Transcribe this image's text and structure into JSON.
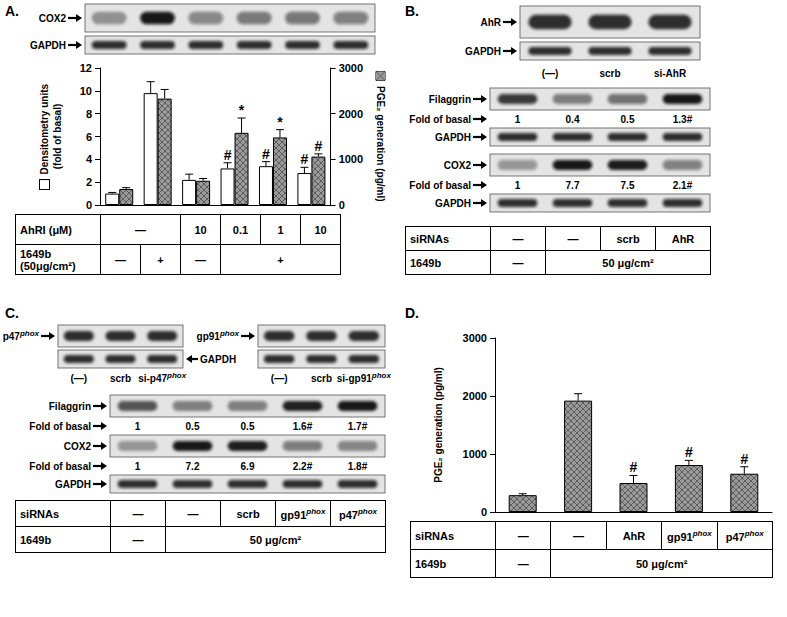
{
  "chart_data": [
    {
      "type": "bar",
      "categories": [
        null,
        null,
        null,
        null,
        null,
        null
      ],
      "y_label": "Densitometry units\n(fold of basal)",
      "ylim": [
        0,
        12
      ],
      "yticks": [
        0,
        2,
        4,
        6,
        8,
        10,
        12
      ],
      "y2_label": "PGE₂ generation (pg/ml)",
      "y2lim": [
        0,
        3000
      ],
      "y2ticks": [
        0,
        1000,
        2000,
        3000
      ],
      "grid": false,
      "series": [
        {
          "type": "bar",
          "color": "#ffffff",
          "values": [
            1.0,
            9.8,
            2.2,
            3.2,
            3.4,
            2.8
          ],
          "errors": [
            0.1,
            1.0,
            0.5,
            0.5,
            0.4,
            0.5
          ],
          "annotations": [
            null,
            null,
            null,
            "#",
            "#",
            "#"
          ]
        },
        {
          "type": "bar",
          "axis": "y2",
          "color": "#9a9a9a",
          "values": [
            350,
            2330,
            530,
            1580,
            1480,
            1060
          ],
          "errors": [
            30,
            200,
            50,
            325,
            170,
            60
          ],
          "annotations": [
            null,
            null,
            null,
            "*",
            "*",
            "#"
          ]
        }
      ]
    },
    {
      "type": "bar",
      "categories": [
        null,
        null,
        null,
        null,
        null
      ],
      "y_label": "PGE₂ generation (pg/ml)",
      "ylim": [
        0,
        3000
      ],
      "yticks": [
        0,
        1000,
        2000,
        3000
      ],
      "grid": false,
      "color": "#9a9a9a",
      "values": [
        290,
        1920,
        500,
        810,
        660
      ],
      "errors": [
        25,
        120,
        130,
        80,
        120
      ],
      "annotations": [
        null,
        null,
        "#",
        "#",
        "#"
      ]
    }
  ],
  "figure": {
    "A": {
      "letter": "A.",
      "blots": [
        {
          "label": "COX2"
        },
        {
          "label": "GAPDH"
        }
      ],
      "table": {
        "rows": [
          {
            "label": "AhRI (μM)",
            "cells": [
              {
                "text": "—",
                "span": 2
              },
              {
                "text": "10"
              },
              {
                "text": "0.1"
              },
              {
                "text": "1"
              },
              {
                "text": "10"
              }
            ]
          },
          {
            "label": "1649b (50μg/cm²)",
            "cells": [
              {
                "text": "—"
              },
              {
                "text": "+"
              },
              {
                "text": "—"
              },
              {
                "text": "+",
                "span": 3
              }
            ]
          }
        ]
      }
    },
    "B": {
      "letter": "B.",
      "knockdown": {
        "targets": [
          {
            "label": "AhR",
            "lane_labels": [
              "(—)",
              "scrb",
              "si-AhR"
            ]
          }
        ],
        "loading_label": "GAPDH"
      },
      "blots": [
        {
          "label": "Filaggrin",
          "fold_label": "Fold of basal",
          "folds": [
            "1",
            "0.4",
            "0.5",
            "1.3#"
          ]
        },
        {
          "label": "GAPDH"
        },
        {
          "label": "COX2",
          "fold_label": "Fold of basal",
          "folds": [
            "1",
            "7.7",
            "7.5",
            "2.1#"
          ]
        },
        {
          "label": "GAPDH"
        }
      ],
      "table": {
        "rows": [
          {
            "label": "siRNAs",
            "cells": [
              {
                "text": "—"
              },
              {
                "text": "—"
              },
              {
                "text": "scrb"
              },
              {
                "text": "AhR"
              }
            ]
          },
          {
            "label": "1649b",
            "cells": [
              {
                "text": "—"
              },
              {
                "text": "50 μg/cm²",
                "span": 3
              }
            ]
          }
        ]
      }
    },
    "C": {
      "letter": "C.",
      "knockdown": {
        "targets": [
          {
            "label": {
              "text": "p47",
              "sup": "phox"
            },
            "lane_labels": [
              "(—)",
              "scrb",
              {
                "text": "si-p47",
                "sup": "phox"
              }
            ]
          },
          {
            "label": {
              "text": "gp91",
              "sup": "phox"
            },
            "lane_labels": [
              "(—)",
              "scrb",
              {
                "text": "si-gp91",
                "sup": "phox"
              }
            ]
          }
        ],
        "loading_label": "GAPDH"
      },
      "blots": [
        {
          "label": "Filaggrin",
          "fold_label": "Fold of basal",
          "folds": [
            "1",
            "0.5",
            "0.5",
            "1.6#",
            "1.7#"
          ]
        },
        {
          "label": "COX2",
          "fold_label": "Fold of basal",
          "folds": [
            "1",
            "7.2",
            "6.9",
            "2.2#",
            "1.8#"
          ]
        },
        {
          "label": "GAPDH"
        }
      ],
      "table": {
        "rows": [
          {
            "label": "siRNAs",
            "cells": [
              {
                "text": "—"
              },
              {
                "text": "—"
              },
              {
                "text": "scrb"
              },
              {
                "text": "gp91",
                "sup": "phox"
              },
              {
                "text": "p47",
                "sup": "phox"
              }
            ]
          },
          {
            "label": "1649b",
            "cells": [
              {
                "text": "—"
              },
              {
                "text": "50 μg/cm²",
                "span": 4
              }
            ]
          }
        ]
      }
    },
    "D": {
      "letter": "D.",
      "table": {
        "rows": [
          {
            "label": "siRNAs",
            "cells": [
              {
                "text": "—"
              },
              {
                "text": "—"
              },
              {
                "text": "AhR"
              },
              {
                "text": "gp91",
                "sup": "phox"
              },
              {
                "text": "p47",
                "sup": "phox"
              }
            ]
          },
          {
            "label": "1649b",
            "cells": [
              {
                "text": "—"
              },
              {
                "text": "50 μg/cm²",
                "span": 4
              }
            ]
          }
        ]
      }
    }
  }
}
